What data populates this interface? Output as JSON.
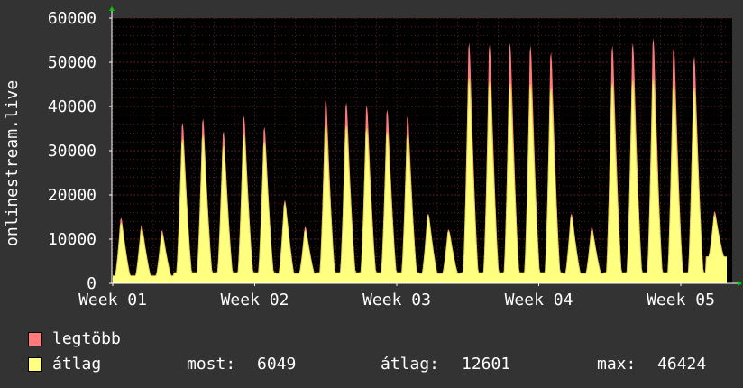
{
  "chart_data": {
    "type": "area",
    "ylabel": "onlinestream.live",
    "ylim": [
      0,
      60000
    ],
    "y_ticks": [
      "0",
      "10000",
      "20000",
      "30000",
      "40000",
      "50000",
      "60000"
    ],
    "x_ticks": [
      "Week 01",
      "Week 02",
      "Week 03",
      "Week 04",
      "Week 05"
    ],
    "grid": true,
    "legend_position": "bottom",
    "colors": {
      "background": "#333333",
      "plot_background": "#000000",
      "grid": "#5a2020",
      "axis_arrow": "#00cc00",
      "legtobb": "#ff7a7a",
      "atlag": "#ffff80",
      "atlag_line": "#e8d050"
    },
    "days": [
      {
        "peak_max": 14800,
        "peak_avg": 13600,
        "valley": 1700
      },
      {
        "peak_max": 13200,
        "peak_avg": 12300,
        "valley": 1700
      },
      {
        "peak_max": 12000,
        "peak_avg": 11100,
        "valley": 1700
      },
      {
        "peak_max": 36400,
        "peak_avg": 32500,
        "valley": 2400
      },
      {
        "peak_max": 37300,
        "peak_avg": 33400,
        "valley": 2400
      },
      {
        "peak_max": 34400,
        "peak_avg": 31000,
        "valley": 2400
      },
      {
        "peak_max": 37900,
        "peak_avg": 33600,
        "valley": 2400
      },
      {
        "peak_max": 35400,
        "peak_avg": 32000,
        "valley": 2400
      },
      {
        "peak_max": 18800,
        "peak_avg": 18000,
        "valley": 2200
      },
      {
        "peak_max": 12800,
        "peak_avg": 12000,
        "valley": 2200
      },
      {
        "peak_max": 41900,
        "peak_avg": 35700,
        "valley": 2400
      },
      {
        "peak_max": 40900,
        "peak_avg": 35500,
        "valley": 2400
      },
      {
        "peak_max": 40300,
        "peak_avg": 35000,
        "valley": 2400
      },
      {
        "peak_max": 39300,
        "peak_avg": 34200,
        "valley": 2400
      },
      {
        "peak_max": 38100,
        "peak_avg": 33500,
        "valley": 2400
      },
      {
        "peak_max": 15800,
        "peak_avg": 15300,
        "valley": 2200
      },
      {
        "peak_max": 12200,
        "peak_avg": 11800,
        "valley": 2200
      },
      {
        "peak_max": 54400,
        "peak_avg": 46200,
        "valley": 2400
      },
      {
        "peak_max": 54000,
        "peak_avg": 45400,
        "valley": 2400
      },
      {
        "peak_max": 54400,
        "peak_avg": 45200,
        "valley": 2400
      },
      {
        "peak_max": 53800,
        "peak_avg": 45000,
        "valley": 2400
      },
      {
        "peak_max": 52300,
        "peak_avg": 44000,
        "valley": 2400
      },
      {
        "peak_max": 15800,
        "peak_avg": 15000,
        "valley": 2200
      },
      {
        "peak_max": 12800,
        "peak_avg": 12000,
        "valley": 2200
      },
      {
        "peak_max": 53800,
        "peak_avg": 45200,
        "valley": 2400
      },
      {
        "peak_max": 54400,
        "peak_avg": 45800,
        "valley": 2400
      },
      {
        "peak_max": 55500,
        "peak_avg": 46000,
        "valley": 2400
      },
      {
        "peak_max": 53700,
        "peak_avg": 44700,
        "valley": 2400
      },
      {
        "peak_max": 51400,
        "peak_avg": 44200,
        "valley": 2400
      },
      {
        "peak_max": 16300,
        "peak_avg": 15400,
        "valley": 6000
      }
    ],
    "series": [
      {
        "name": "legtöbb"
      },
      {
        "name": "átlag"
      }
    ]
  },
  "legend": {
    "legtobb_label": "legtöbb",
    "atlag_label": "átlag",
    "most_label": "most:",
    "most_value": "6049",
    "atlag_stat_label": "átlag:",
    "atlag_stat_value": "12601",
    "max_label": "max:",
    "max_value": "46424"
  }
}
